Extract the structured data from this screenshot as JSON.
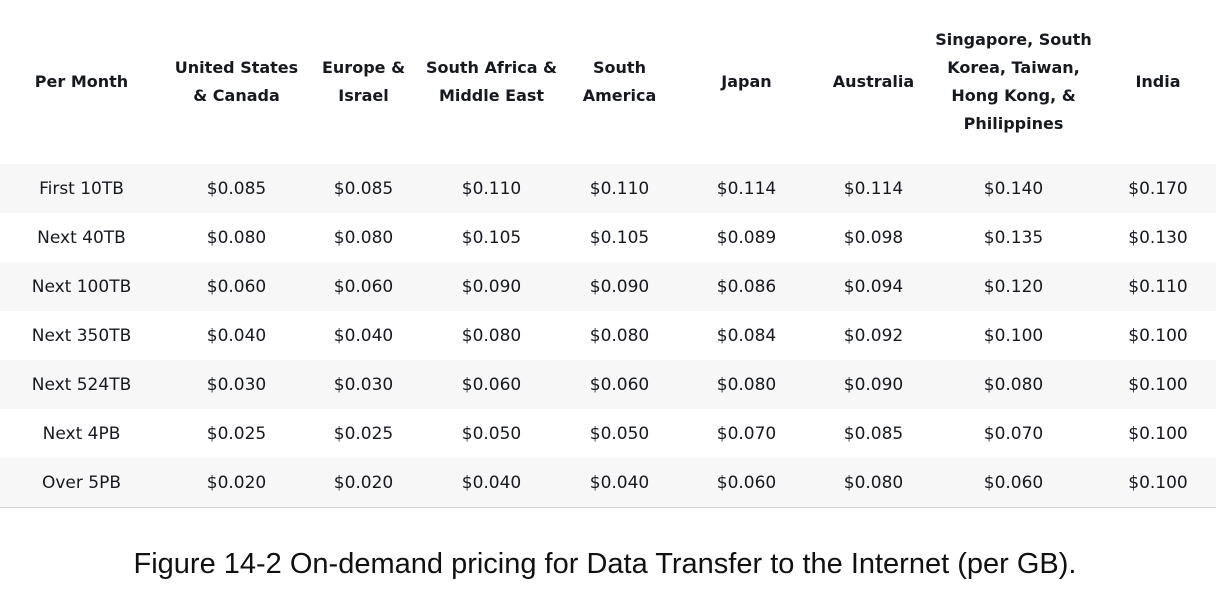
{
  "table": {
    "headers": [
      "Per Month",
      "United States & Canada",
      "Europe & Israel",
      "South Africa & Middle East",
      "South America",
      "Japan",
      "Australia",
      "Singapore, South Korea, Taiwan, Hong Kong, & Philippines",
      "India"
    ],
    "rows": [
      [
        "First 10TB",
        "$0.085",
        "$0.085",
        "$0.110",
        "$0.110",
        "$0.114",
        "$0.114",
        "$0.140",
        "$0.170"
      ],
      [
        "Next 40TB",
        "$0.080",
        "$0.080",
        "$0.105",
        "$0.105",
        "$0.089",
        "$0.098",
        "$0.135",
        "$0.130"
      ],
      [
        "Next 100TB",
        "$0.060",
        "$0.060",
        "$0.090",
        "$0.090",
        "$0.086",
        "$0.094",
        "$0.120",
        "$0.110"
      ],
      [
        "Next 350TB",
        "$0.040",
        "$0.040",
        "$0.080",
        "$0.080",
        "$0.084",
        "$0.092",
        "$0.100",
        "$0.100"
      ],
      [
        "Next 524TB",
        "$0.030",
        "$0.030",
        "$0.060",
        "$0.060",
        "$0.080",
        "$0.090",
        "$0.080",
        "$0.100"
      ],
      [
        "Next 4PB",
        "$0.025",
        "$0.025",
        "$0.050",
        "$0.050",
        "$0.070",
        "$0.085",
        "$0.070",
        "$0.100"
      ],
      [
        "Over 5PB",
        "$0.020",
        "$0.020",
        "$0.040",
        "$0.040",
        "$0.060",
        "$0.080",
        "$0.060",
        "$0.100"
      ]
    ]
  },
  "caption": "Figure 14-2 On-demand pricing for Data Transfer to the Internet (per GB)."
}
